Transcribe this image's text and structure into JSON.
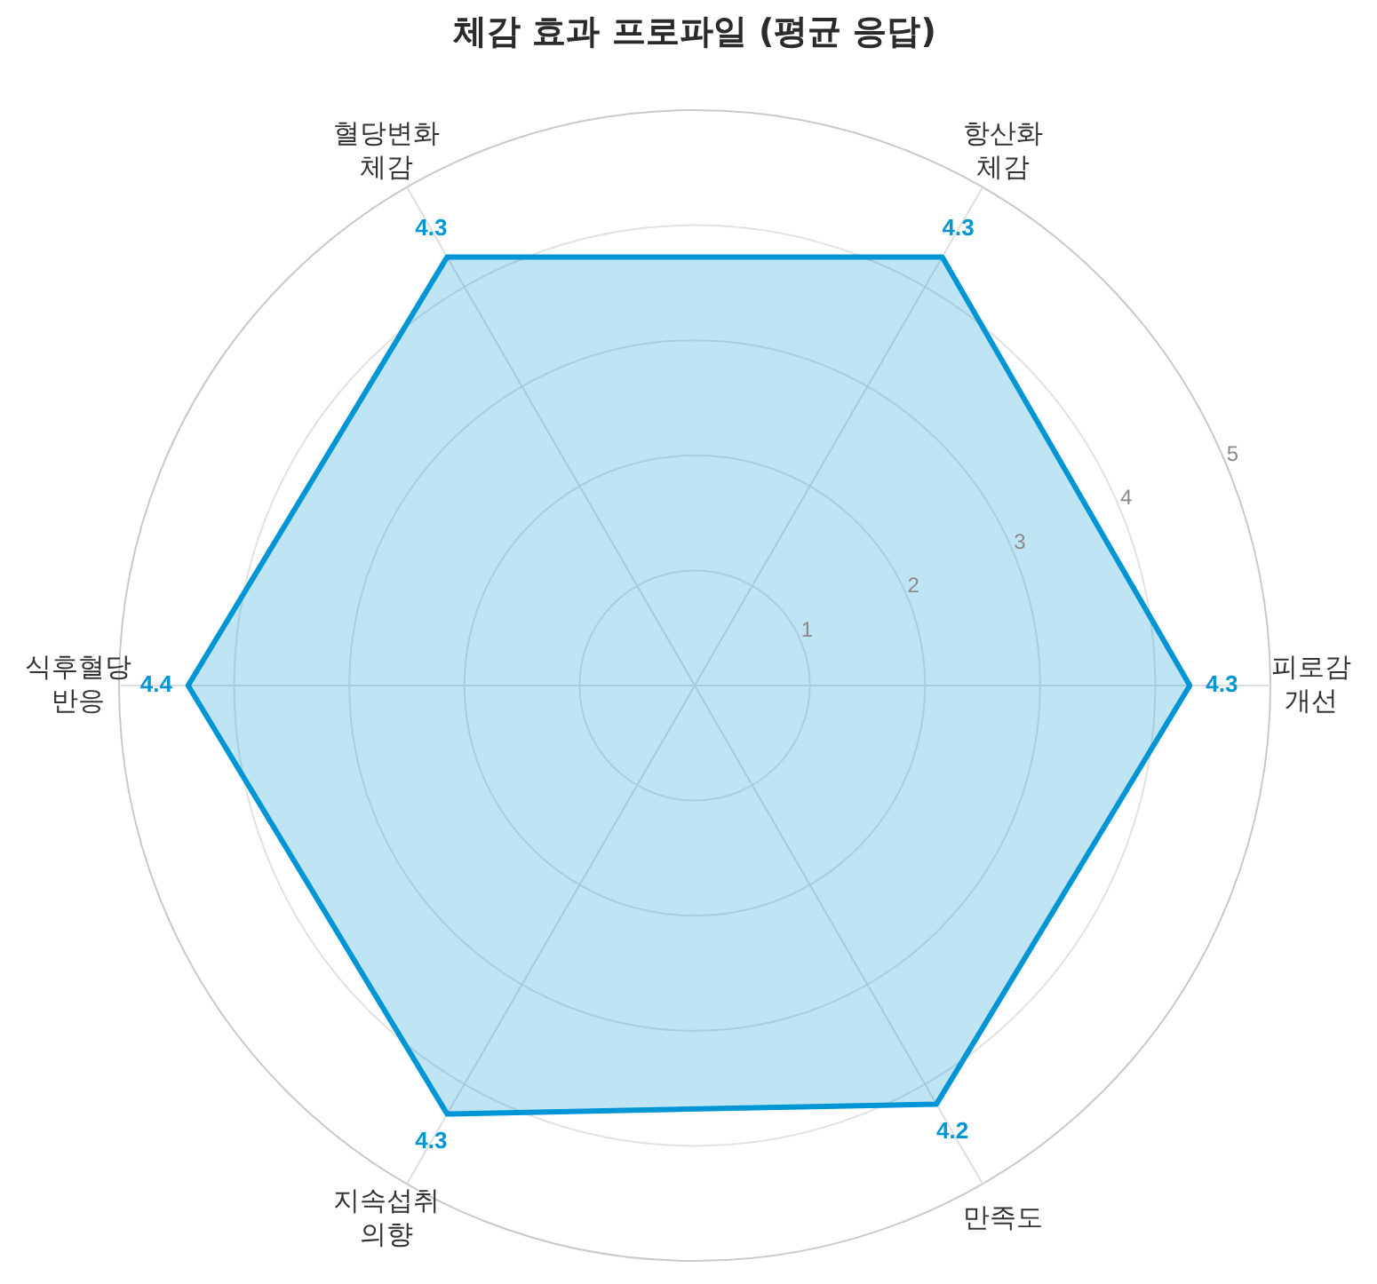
{
  "chart_data": {
    "type": "radar",
    "title": "체감 효과 프로파일 (평균 응답)",
    "categories": [
      "항산화 체감",
      "피로감 개선",
      "만족도",
      "지속섭취 의향",
      "식후혈당 반응",
      "혈당변화 체감"
    ],
    "series": [
      {
        "color": "#0096d6",
        "values": [
          4.3,
          4.3,
          4.2,
          4.3,
          4.4,
          4.3
        ]
      }
    ],
    "ylim": [
      0,
      5
    ],
    "yticks": [
      1,
      2,
      3,
      4,
      5
    ],
    "grid": true,
    "legend": false,
    "marker": "none",
    "data_labels": true
  }
}
